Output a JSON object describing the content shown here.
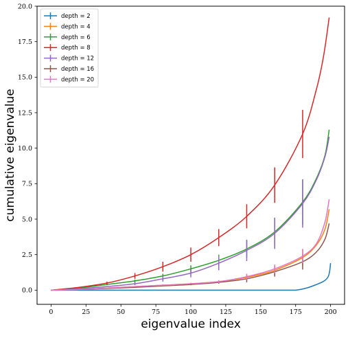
{
  "chart_data": {
    "type": "line",
    "title": "",
    "xlabel": "eigenvalue index",
    "ylabel": "cumulative eigenvalue",
    "xlim": [
      -10,
      210
    ],
    "ylim": [
      -1.0,
      20.0
    ],
    "x_ticks": [
      0,
      25,
      50,
      75,
      100,
      125,
      150,
      175,
      200
    ],
    "y_ticks": [
      0.0,
      2.5,
      5.0,
      7.5,
      10.0,
      12.5,
      15.0,
      17.5,
      20.0
    ],
    "x_tick_labels": [
      "0",
      "25",
      "50",
      "75",
      "100",
      "125",
      "150",
      "175",
      "200"
    ],
    "y_tick_labels": [
      "0.0",
      "2.5",
      "5.0",
      "7.5",
      "10.0",
      "12.5",
      "15.0",
      "17.5",
      "20.0"
    ],
    "grid": false,
    "legend_position": "top-left",
    "series": [
      {
        "name": "depth = 2",
        "color": "#1f77b4",
        "points": [
          [
            0,
            0
          ],
          [
            25,
            0
          ],
          [
            50,
            0
          ],
          [
            75,
            0
          ],
          [
            100,
            0
          ],
          [
            125,
            0
          ],
          [
            150,
            0
          ],
          [
            175,
            0
          ],
          [
            190,
            0.4
          ],
          [
            198,
            0.9
          ],
          [
            200,
            1.9
          ]
        ],
        "errorbars": []
      },
      {
        "name": "depth = 4",
        "color": "#ff7f0e",
        "points": [
          [
            0,
            0
          ],
          [
            20,
            0.05
          ],
          [
            40,
            0.15
          ],
          [
            60,
            0.25
          ],
          [
            80,
            0.35
          ],
          [
            100,
            0.45
          ],
          [
            120,
            0.6
          ],
          [
            140,
            0.9
          ],
          [
            160,
            1.4
          ],
          [
            180,
            2.3
          ],
          [
            190,
            3.2
          ],
          [
            196,
            4.3
          ],
          [
            199,
            5.7
          ]
        ],
        "errorbars": [
          [
            60,
            0.25,
            0.03
          ],
          [
            80,
            0.35,
            0.05
          ],
          [
            100,
            0.45,
            0.07
          ],
          [
            120,
            0.6,
            0.1
          ],
          [
            140,
            0.9,
            0.2
          ],
          [
            160,
            1.4,
            0.35
          ],
          [
            180,
            2.3,
            0.6
          ]
        ]
      },
      {
        "name": "depth = 6",
        "color": "#2ca02c",
        "points": [
          [
            0,
            0
          ],
          [
            20,
            0.15
          ],
          [
            40,
            0.4
          ],
          [
            60,
            0.65
          ],
          [
            80,
            1.0
          ],
          [
            100,
            1.5
          ],
          [
            120,
            2.1
          ],
          [
            140,
            2.9
          ],
          [
            160,
            4.1
          ],
          [
            180,
            6.2
          ],
          [
            190,
            7.9
          ],
          [
            196,
            9.5
          ],
          [
            199,
            11.3
          ]
        ],
        "errorbars": [
          [
            40,
            0.4,
            0.05
          ],
          [
            60,
            0.65,
            0.1
          ],
          [
            80,
            1.0,
            0.15
          ],
          [
            100,
            1.5,
            0.25
          ],
          [
            120,
            2.1,
            0.4
          ],
          [
            140,
            2.9,
            0.6
          ],
          [
            160,
            4.1,
            1.0
          ],
          [
            180,
            6.2,
            1.6
          ]
        ]
      },
      {
        "name": "depth = 8",
        "color": "#d62728",
        "points": [
          [
            0,
            0
          ],
          [
            20,
            0.2
          ],
          [
            40,
            0.5
          ],
          [
            60,
            1.0
          ],
          [
            80,
            1.65
          ],
          [
            100,
            2.5
          ],
          [
            120,
            3.7
          ],
          [
            140,
            5.2
          ],
          [
            160,
            7.4
          ],
          [
            180,
            11.0
          ],
          [
            190,
            14.2
          ],
          [
            195,
            16.5
          ],
          [
            199,
            19.2
          ]
        ],
        "errorbars": [
          [
            40,
            0.5,
            0.1
          ],
          [
            60,
            1.0,
            0.2
          ],
          [
            80,
            1.65,
            0.35
          ],
          [
            100,
            2.5,
            0.5
          ],
          [
            120,
            3.7,
            0.6
          ],
          [
            140,
            5.2,
            0.85
          ],
          [
            160,
            7.4,
            1.25
          ],
          [
            180,
            11.0,
            1.7
          ]
        ]
      },
      {
        "name": "depth = 12",
        "color": "#9467bd",
        "points": [
          [
            0,
            0
          ],
          [
            20,
            0.1
          ],
          [
            40,
            0.25
          ],
          [
            60,
            0.45
          ],
          [
            80,
            0.8
          ],
          [
            100,
            1.2
          ],
          [
            120,
            1.9
          ],
          [
            140,
            2.8
          ],
          [
            160,
            4.0
          ],
          [
            180,
            6.1
          ],
          [
            190,
            7.8
          ],
          [
            196,
            9.4
          ],
          [
            199,
            10.8
          ]
        ],
        "errorbars": [
          [
            60,
            0.45,
            0.1
          ],
          [
            80,
            0.8,
            0.2
          ],
          [
            100,
            1.2,
            0.3
          ],
          [
            120,
            1.9,
            0.5
          ],
          [
            140,
            2.8,
            0.75
          ],
          [
            160,
            4.0,
            1.1
          ],
          [
            180,
            6.1,
            1.7
          ]
        ]
      },
      {
        "name": "depth = 16",
        "color": "#8c564b",
        "points": [
          [
            0,
            0
          ],
          [
            20,
            0.05
          ],
          [
            40,
            0.12
          ],
          [
            60,
            0.2
          ],
          [
            80,
            0.3
          ],
          [
            100,
            0.4
          ],
          [
            120,
            0.55
          ],
          [
            140,
            0.8
          ],
          [
            160,
            1.3
          ],
          [
            180,
            2.0
          ],
          [
            190,
            2.7
          ],
          [
            196,
            3.6
          ],
          [
            199,
            4.7
          ]
        ],
        "errorbars": [
          [
            100,
            0.4,
            0.05
          ],
          [
            120,
            0.55,
            0.1
          ],
          [
            140,
            0.8,
            0.25
          ],
          [
            160,
            1.3,
            0.35
          ],
          [
            180,
            2.0,
            0.55
          ]
        ]
      },
      {
        "name": "depth = 20",
        "color": "#e377c2",
        "points": [
          [
            0,
            0
          ],
          [
            20,
            0.05
          ],
          [
            40,
            0.15
          ],
          [
            60,
            0.25
          ],
          [
            80,
            0.35
          ],
          [
            100,
            0.45
          ],
          [
            120,
            0.6
          ],
          [
            140,
            0.95
          ],
          [
            160,
            1.5
          ],
          [
            180,
            2.4
          ],
          [
            190,
            3.3
          ],
          [
            196,
            4.8
          ],
          [
            199,
            6.4
          ]
        ],
        "errorbars": [
          [
            120,
            0.6,
            0.1
          ],
          [
            140,
            0.95,
            0.2
          ],
          [
            160,
            1.5,
            0.3
          ],
          [
            180,
            2.4,
            0.5
          ]
        ]
      }
    ]
  }
}
